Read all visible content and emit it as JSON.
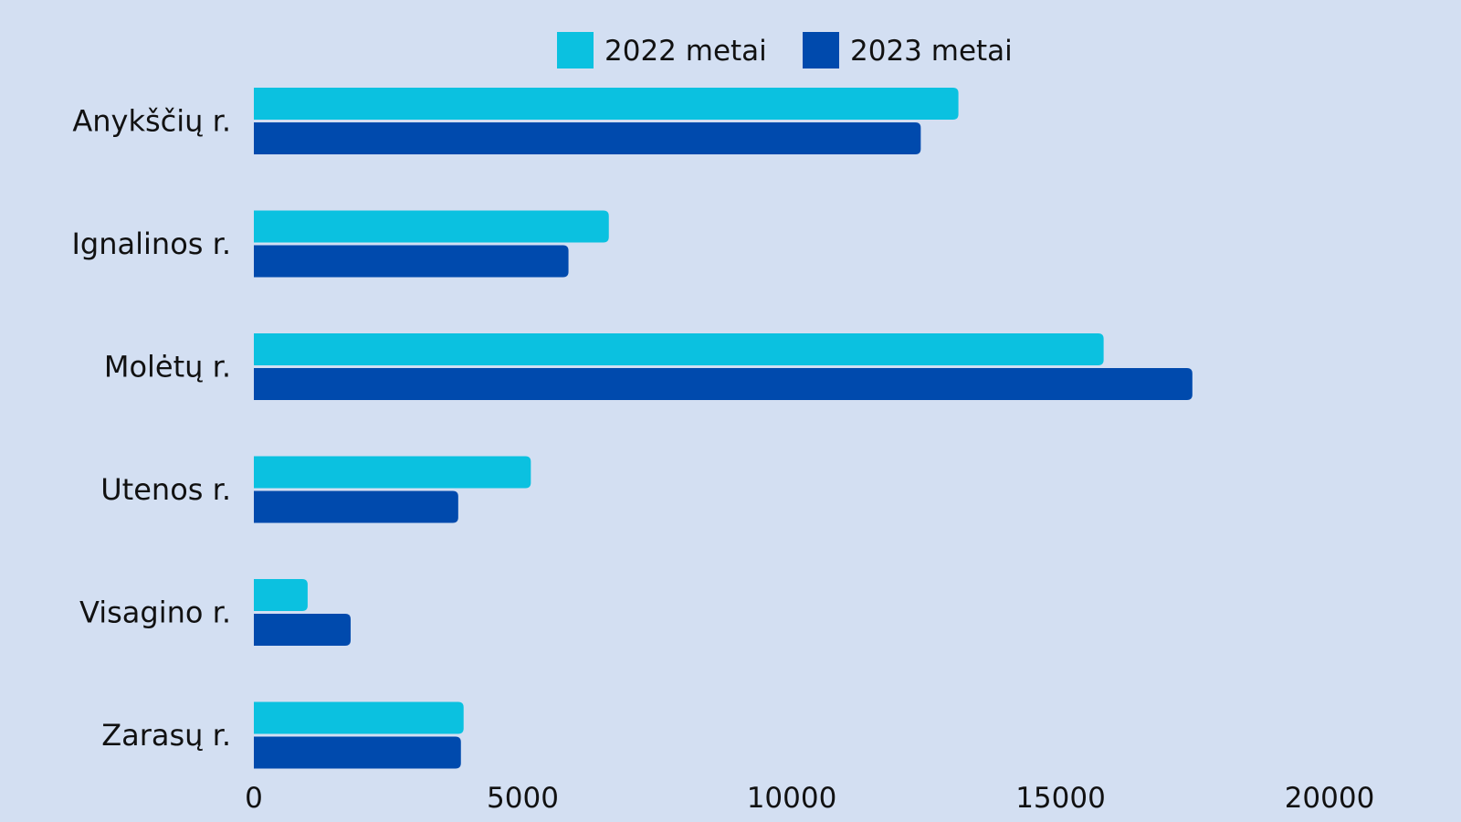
{
  "chart_data": {
    "type": "bar",
    "orientation": "horizontal",
    "categories": [
      "Anykščių r.",
      "Ignalinos r.",
      "Molėtų r.",
      "Utenos r.",
      "Visagino r.",
      "Zarasų r."
    ],
    "series": [
      {
        "name": "2022 metai",
        "color": "#0bc1e0",
        "values": [
          13100,
          6600,
          15800,
          5150,
          1000,
          3900
        ]
      },
      {
        "name": "2023 metai",
        "color": "#004aad",
        "values": [
          12400,
          5850,
          17450,
          3800,
          1800,
          3850
        ]
      }
    ],
    "xlim": [
      0,
      20000
    ],
    "xticks": [
      0,
      5000,
      10000,
      15000,
      20000
    ],
    "legend_position": "top-center",
    "grid": false
  }
}
